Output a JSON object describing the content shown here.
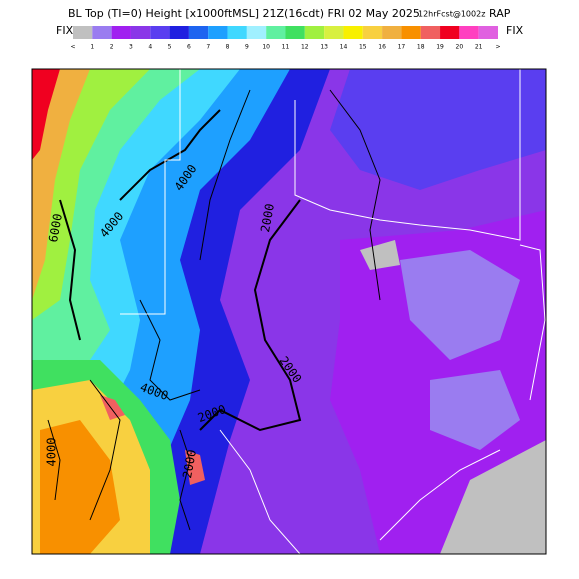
{
  "header": {
    "title": "BL Top (TI=0) Height [x1000ftMSL] 21Z(16cdt) FRI 02 May 2025",
    "forecast": "12hrFcst@1002z",
    "model": "RAP"
  },
  "colorbar": {
    "fix_left": "FIX",
    "fix_right": "FIX",
    "labels": [
      "<",
      "1",
      "2",
      "3",
      "4",
      "5",
      "6",
      "7",
      "8",
      "9",
      "10",
      "11",
      "12",
      "13",
      "14",
      "15",
      "16",
      "17",
      "18",
      "19",
      "20",
      "21",
      ">"
    ],
    "colors": [
      "#c0c0c0",
      "#9a7cf0",
      "#a020f0",
      "#8a36e8",
      "#5a3ef0",
      "#2020e0",
      "#1e64f0",
      "#1ea0ff",
      "#40d8ff",
      "#a0f0ff",
      "#60f0a0",
      "#40e060",
      "#a0f040",
      "#d8f040",
      "#f8f000",
      "#f8d040",
      "#f0b040",
      "#f89000",
      "#f06060",
      "#f00020",
      "#ff40c0",
      "#e060e0"
    ]
  },
  "contour_labels": [
    "6000",
    "4000",
    "4000",
    "2000",
    "2000",
    "4000",
    "2000",
    "4000",
    "2000"
  ]
}
